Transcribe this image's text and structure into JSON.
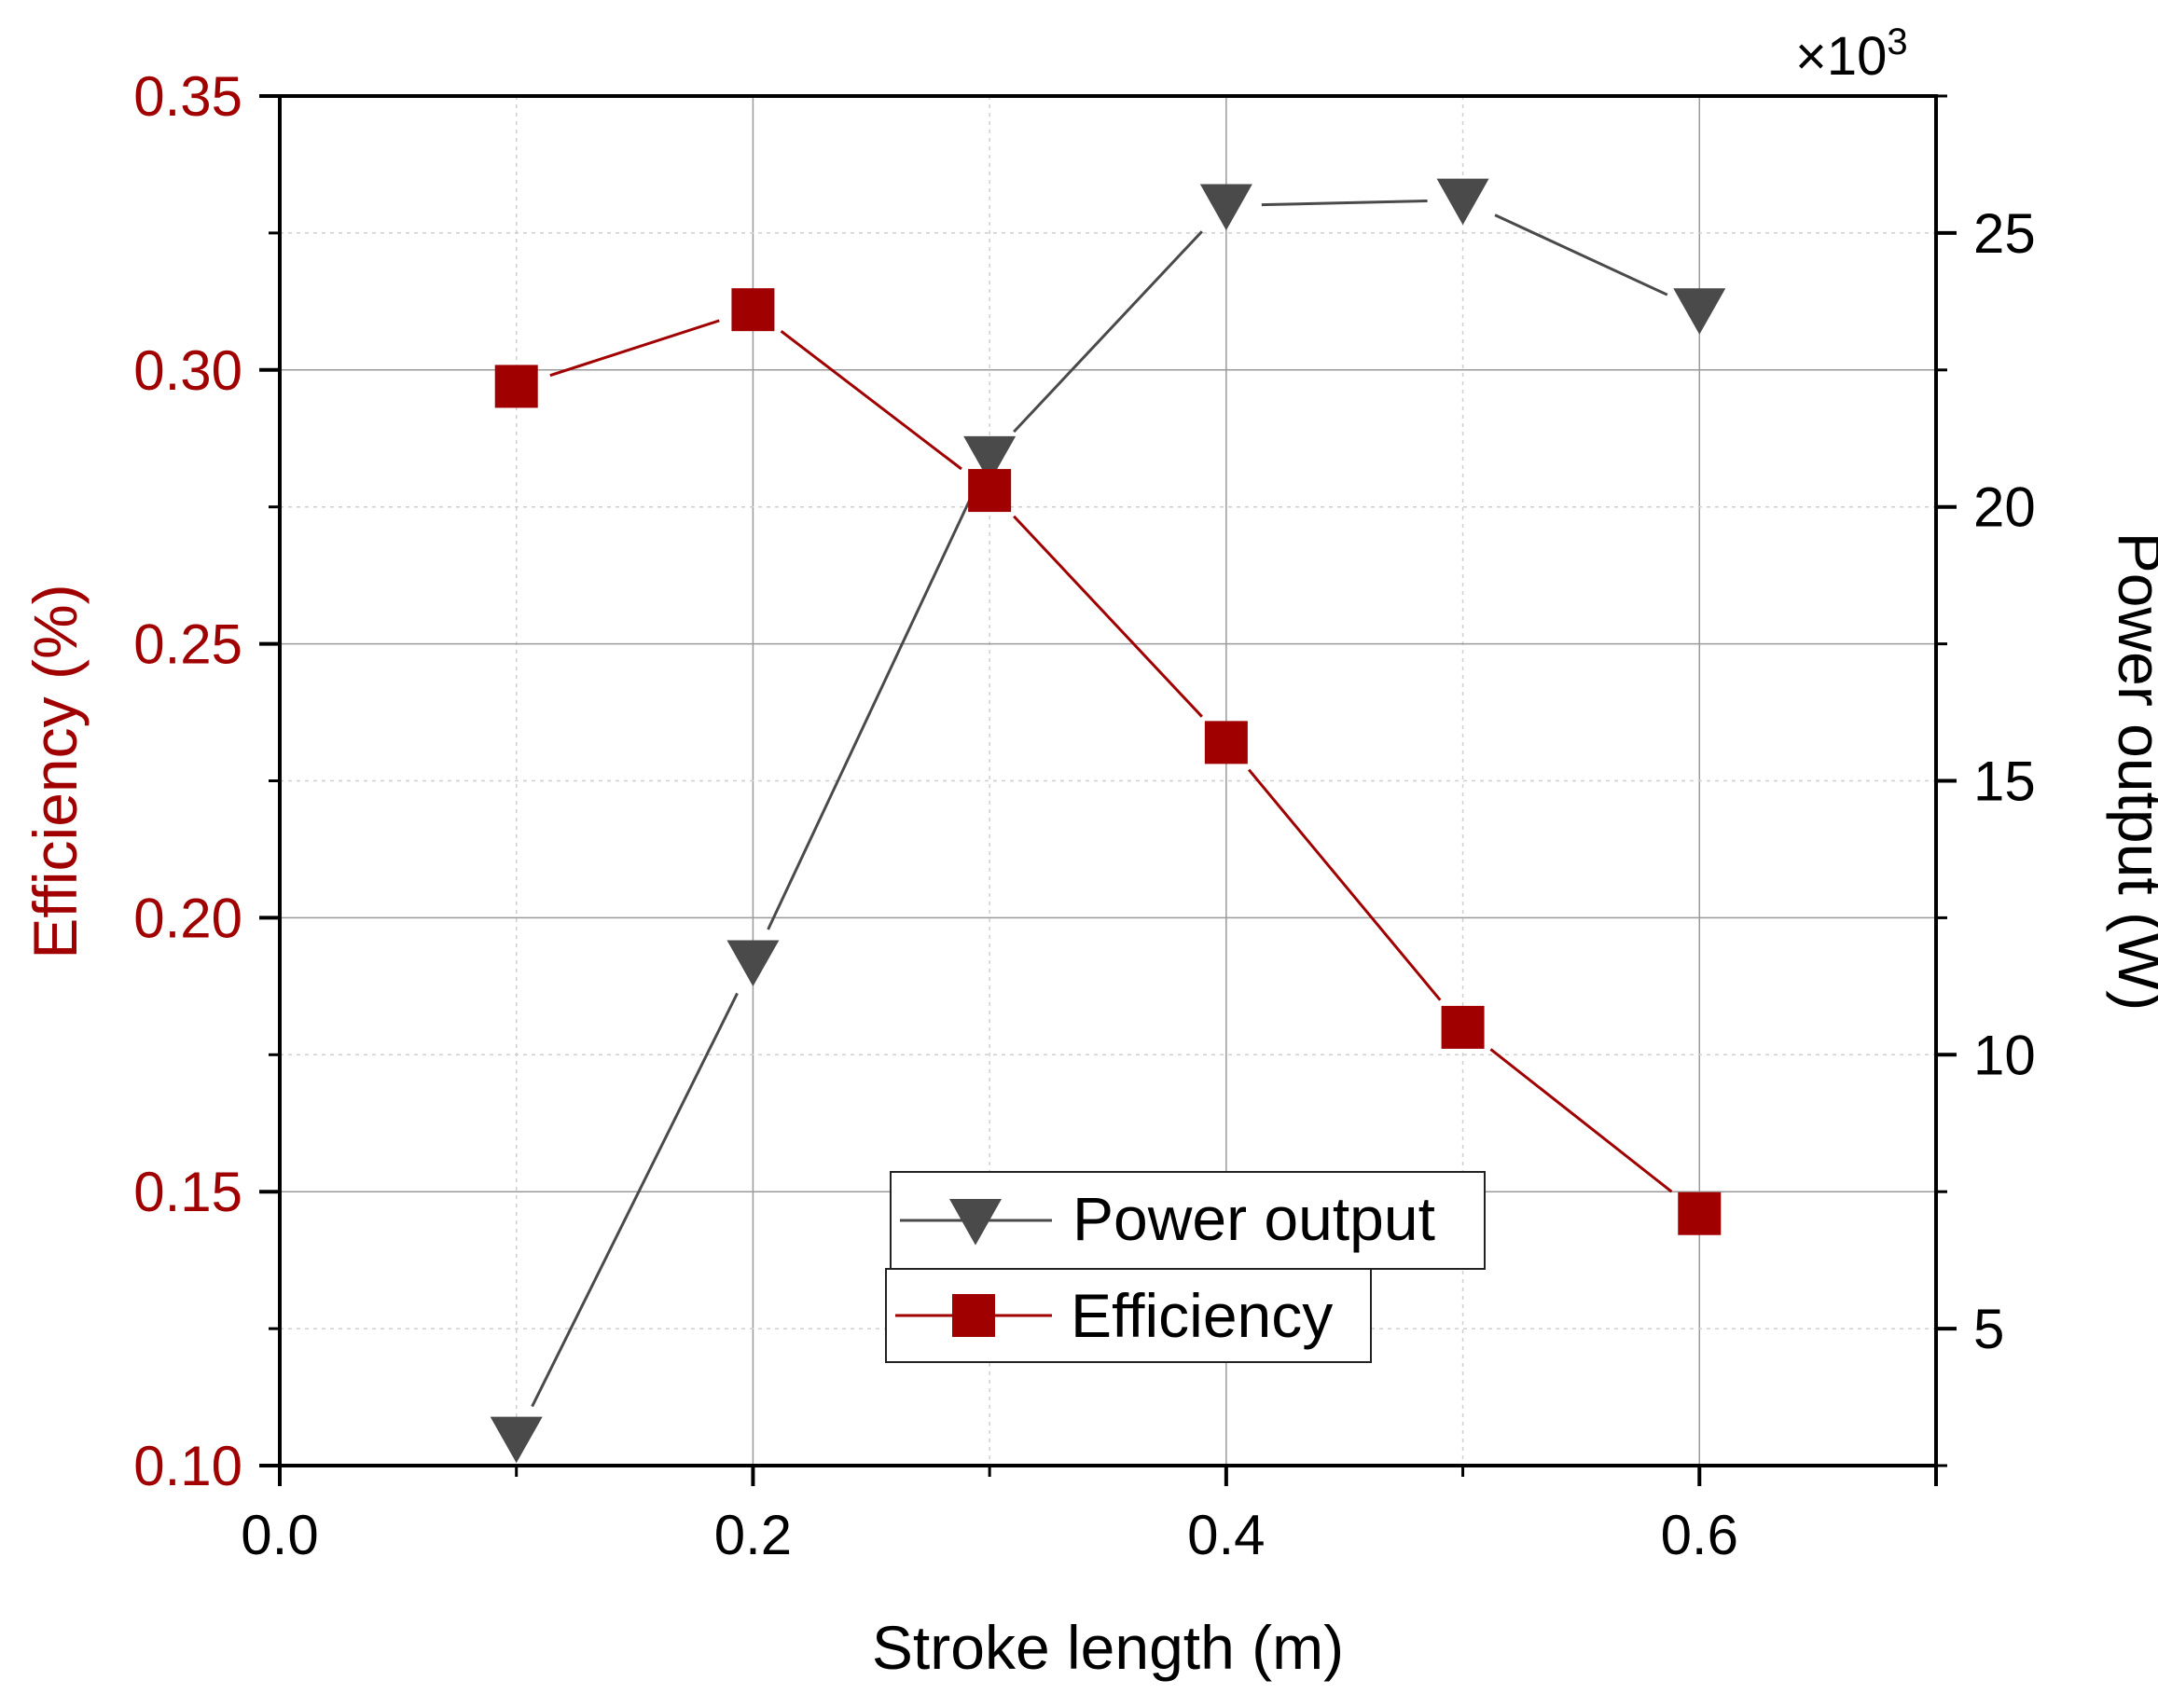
{
  "chart_data": {
    "type": "line",
    "xlabel": "Stroke length (m)",
    "ylabel_left": "Efficiency (%)",
    "ylabel_right": "Power output (W)",
    "right_axis_multiplier": "×10",
    "right_axis_multiplier_exponent": "3",
    "xlim": [
      0.0,
      0.7
    ],
    "ylim_left": [
      0.1,
      0.35
    ],
    "ylim_right": [
      2.5,
      27.5
    ],
    "grid": true,
    "x_ticks": [
      "0.0",
      "0.2",
      "0.4",
      "0.6"
    ],
    "x_tick_values": [
      0.0,
      0.2,
      0.4,
      0.6
    ],
    "y_left_ticks": [
      "0.10",
      "0.15",
      "0.20",
      "0.25",
      "0.30",
      "0.35"
    ],
    "y_left_tick_values": [
      0.1,
      0.15,
      0.2,
      0.25,
      0.3,
      0.35
    ],
    "y_right_ticks": [
      "5",
      "10",
      "15",
      "20",
      "25"
    ],
    "y_right_tick_values": [
      5,
      10,
      15,
      20,
      25
    ],
    "legend_placement": "bottom-center",
    "series": [
      {
        "name": "Power output",
        "axis": "right",
        "marker": "triangle-down",
        "color": "#4a4a4a",
        "x": [
          0.1,
          0.2,
          0.3,
          0.4,
          0.5,
          0.6
        ],
        "values": [
          3.0,
          11.7,
          20.9,
          25.5,
          25.6,
          23.6
        ]
      },
      {
        "name": "Efficiency",
        "axis": "left",
        "marker": "square",
        "color": "#a00000",
        "x": [
          0.1,
          0.2,
          0.3,
          0.4,
          0.5,
          0.6
        ],
        "values": [
          0.297,
          0.311,
          0.278,
          0.232,
          0.18,
          0.146
        ]
      }
    ],
    "left_axis_color": "#a00000",
    "right_axis_color": "#000000"
  }
}
